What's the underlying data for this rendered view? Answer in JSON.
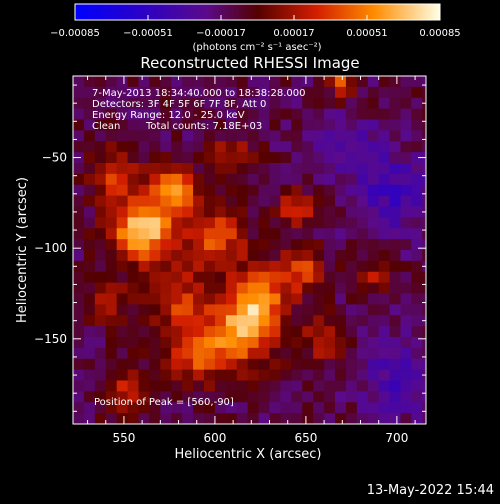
{
  "chart_data": {
    "type": "heatmap",
    "title": "Reconstructed RHESSI Image",
    "xlabel": "Heliocentric X (arcsec)",
    "ylabel": "Heliocentric Y (arcsec)",
    "xlim": [
      522,
      716
    ],
    "ylim": [
      -197,
      -5
    ],
    "x_ticks": [
      550,
      600,
      650,
      700
    ],
    "y_ticks": [
      -50,
      -100,
      -150
    ],
    "x_tick_labels": [
      "550",
      "600",
      "650",
      "700"
    ],
    "y_tick_labels": [
      "−50",
      "−100",
      "−150"
    ],
    "colorbar": {
      "min": -0.00085,
      "max": 0.00085,
      "tick_values": [
        -0.00085,
        -0.00051,
        -0.00017,
        0.00017,
        0.00051,
        0.00085
      ],
      "tick_labels": [
        "−0.00085",
        "−0.00051",
        "−0.00017",
        "0.00017",
        "0.00051",
        "0.00085"
      ],
      "units_label": "(photons cm⁻² s⁻¹ asec⁻²)"
    },
    "peak": [
      560,
      -90
    ],
    "sources": [
      {
        "x": 560,
        "y": -90,
        "amp": 0.00085,
        "sigma": 12
      },
      {
        "x": 578,
        "y": -68,
        "amp": 0.0006,
        "sigma": 9
      },
      {
        "x": 545,
        "y": -60,
        "amp": 0.0004,
        "sigma": 10
      },
      {
        "x": 600,
        "y": -95,
        "amp": 0.0005,
        "sigma": 12
      },
      {
        "x": 615,
        "y": -145,
        "amp": 0.00075,
        "sigma": 13
      },
      {
        "x": 625,
        "y": -125,
        "amp": 0.00055,
        "sigma": 10
      },
      {
        "x": 590,
        "y": -160,
        "amp": 0.00045,
        "sigma": 11
      },
      {
        "x": 648,
        "y": -112,
        "amp": 0.00045,
        "sigma": 9
      },
      {
        "x": 645,
        "y": -78,
        "amp": 0.0004,
        "sigma": 7
      },
      {
        "x": 660,
        "y": -150,
        "amp": 0.00035,
        "sigma": 9
      },
      {
        "x": 580,
        "y": -130,
        "amp": 0.0004,
        "sigma": 12
      },
      {
        "x": 552,
        "y": -180,
        "amp": 0.00035,
        "sigma": 10
      },
      {
        "x": 670,
        "y": -10,
        "amp": 0.0005,
        "sigma": 5
      },
      {
        "x": 690,
        "y": -115,
        "amp": 0.0003,
        "sigma": 7
      },
      {
        "x": 540,
        "y": -130,
        "amp": 0.0003,
        "sigma": 9
      },
      {
        "x": 610,
        "y": -50,
        "amp": 0.0003,
        "sigma": 9
      },
      {
        "x": 700,
        "y": -70,
        "amp": -0.0003,
        "sigma": 15
      },
      {
        "x": 700,
        "y": -170,
        "amp": -0.00025,
        "sigma": 15
      },
      {
        "x": 675,
        "y": -45,
        "amp": -0.0002,
        "sigma": 12
      }
    ]
  },
  "annotations": {
    "time_range": "7-May-2013 18:34:40.000 to 18:38:28.000",
    "detectors": "Detectors: 3F 4F 5F 6F 7F 8F, Att 0",
    "energy": "Energy Range: 12.0 - 25.0 keV",
    "clean": "Clean",
    "total_counts": "Total counts: 7.18E+03",
    "peak_position": "Position of Peak = [560,-90]"
  },
  "footer": {
    "date": "13-May-2022 15:44"
  }
}
